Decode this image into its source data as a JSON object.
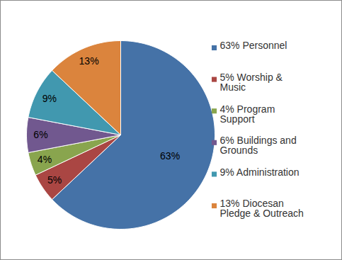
{
  "chart_data": {
    "type": "pie",
    "categories": [
      "63% Personnel",
      "5% Worship & Music",
      "4% Program Support",
      "6% Buildings and Grounds",
      "9% Administration",
      "13% Diocesan Pledge & Outreach"
    ],
    "values": [
      63,
      5,
      4,
      6,
      9,
      13
    ],
    "value_labels": [
      "63%",
      "5%",
      "4%",
      "6%",
      "9%",
      "13%"
    ],
    "colors": [
      "#4572A7",
      "#AA4643",
      "#89A54E",
      "#71588F",
      "#4198AF",
      "#DB843D"
    ],
    "data_labels": true,
    "legend": "right"
  }
}
